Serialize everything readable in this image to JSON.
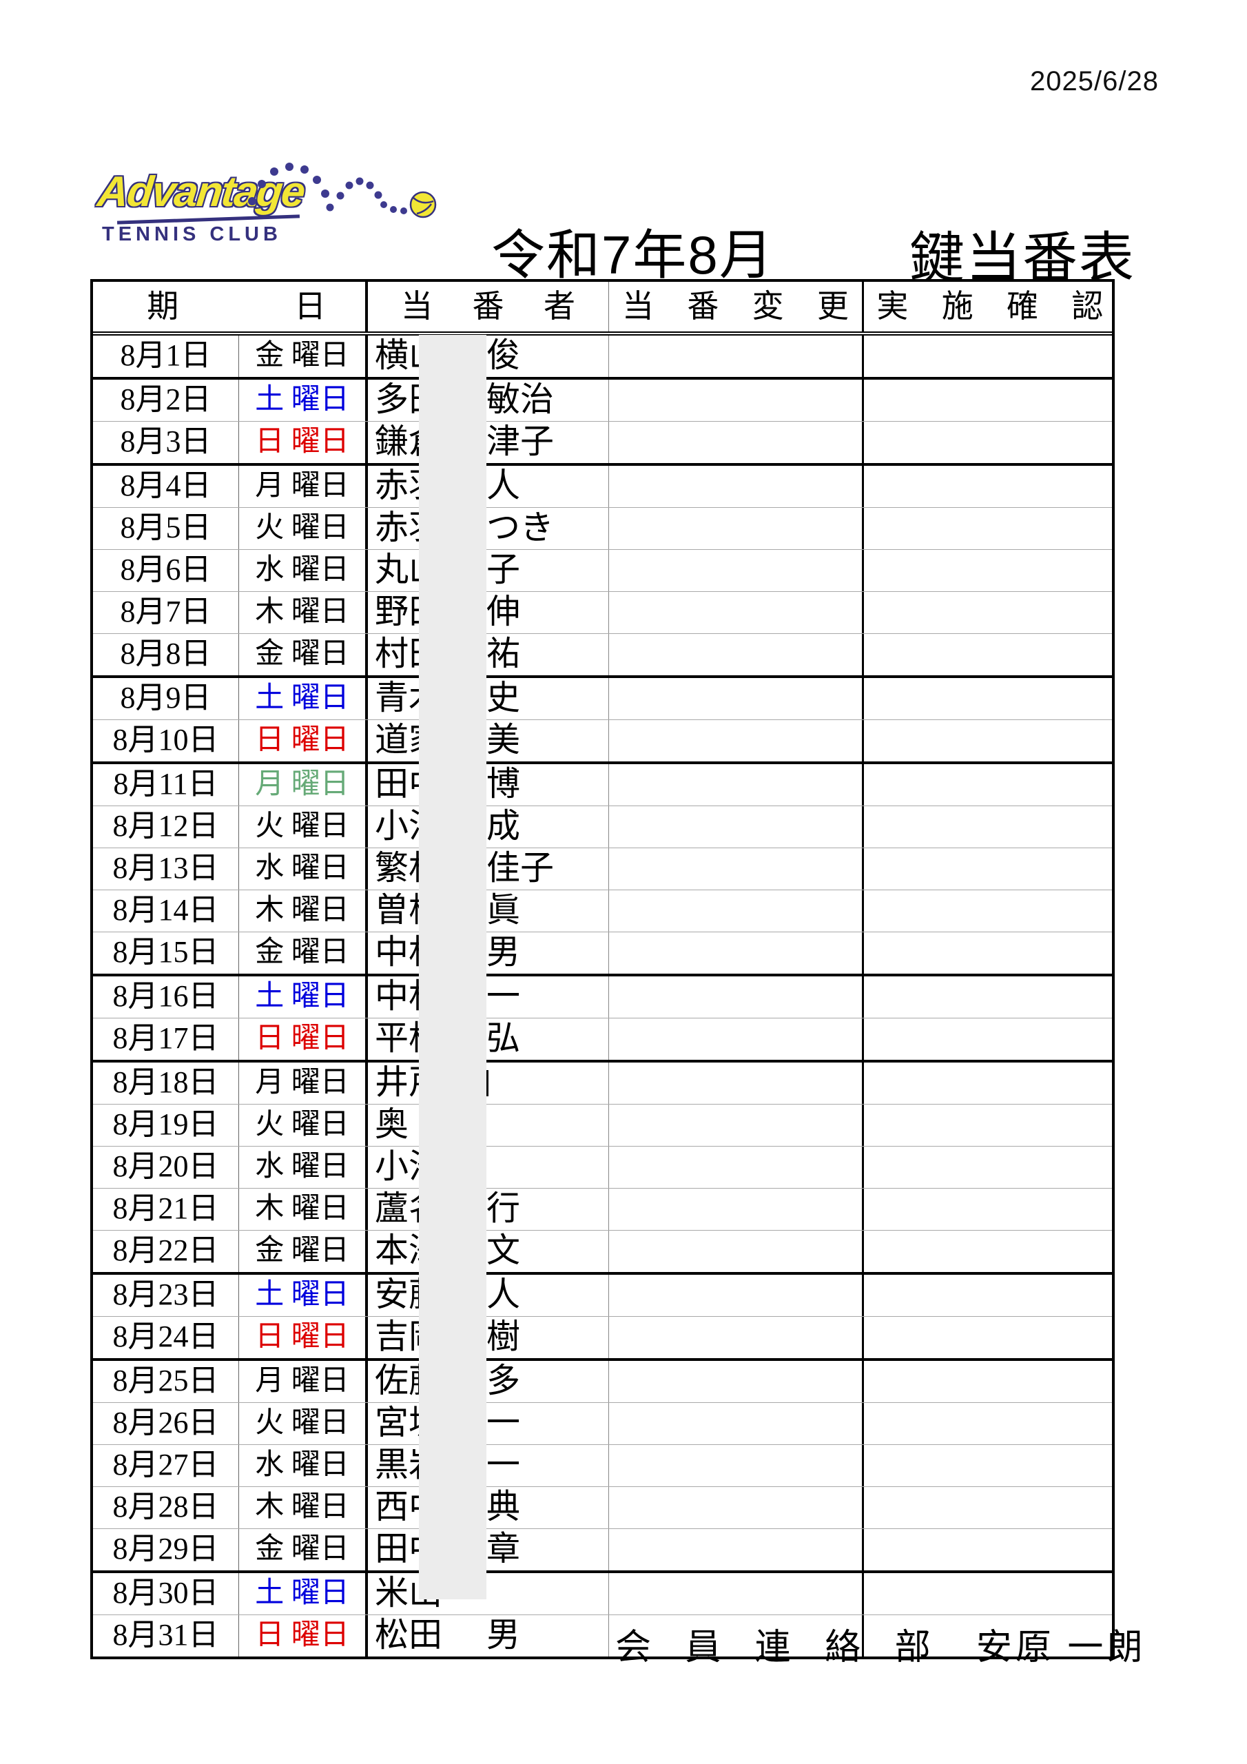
{
  "page": {
    "print_date": "2025/6/28"
  },
  "logo": {
    "brand": "Advantage",
    "subtitle": "TENNIS CLUB"
  },
  "header": {
    "era_month": "令和7年8月",
    "doc_title": "鍵当番表"
  },
  "table": {
    "columns": {
      "date_header": "期 日",
      "person_header": "当 番 者",
      "change_header": "当 番 変 更",
      "confirm_header": "実 施 確 認"
    },
    "rows": [
      {
        "date": "8月1日",
        "day": "金 曜日",
        "day_type": "weekday",
        "name_left": "横山",
        "name_right": "俊",
        "thick_top": false
      },
      {
        "date": "8月2日",
        "day": "土 曜日",
        "day_type": "saturday",
        "name_left": "多田",
        "name_right": "敏治",
        "thick_top": true
      },
      {
        "date": "8月3日",
        "day": "日 曜日",
        "day_type": "sunday",
        "name_left": "鎌倉",
        "name_right": "津子",
        "thick_top": false
      },
      {
        "date": "8月4日",
        "day": "月 曜日",
        "day_type": "weekday",
        "name_left": "赤羽",
        "name_right": "人",
        "thick_top": true
      },
      {
        "date": "8月5日",
        "day": "火 曜日",
        "day_type": "weekday",
        "name_left": "赤羽",
        "name_right": "つき",
        "thick_top": false
      },
      {
        "date": "8月6日",
        "day": "水 曜日",
        "day_type": "weekday",
        "name_left": "丸山",
        "name_right": "子",
        "thick_top": false
      },
      {
        "date": "8月7日",
        "day": "木 曜日",
        "day_type": "weekday",
        "name_left": "野田",
        "name_right": "伸",
        "thick_top": false
      },
      {
        "date": "8月8日",
        "day": "金 曜日",
        "day_type": "weekday",
        "name_left": "村田",
        "name_right": "祐",
        "thick_top": false
      },
      {
        "date": "8月9日",
        "day": "土 曜日",
        "day_type": "saturday",
        "name_left": "青木",
        "name_right": "史",
        "thick_top": true
      },
      {
        "date": "8月10日",
        "day": "日 曜日",
        "day_type": "sunday",
        "name_left": "道家",
        "name_right": "美",
        "thick_top": false
      },
      {
        "date": "8月11日",
        "day": "月 曜日",
        "day_type": "holiday",
        "name_left": "田中",
        "name_right": "博",
        "thick_top": true
      },
      {
        "date": "8月12日",
        "day": "火 曜日",
        "day_type": "weekday",
        "name_left": "小沼",
        "name_right": "成",
        "thick_top": false
      },
      {
        "date": "8月13日",
        "day": "水 曜日",
        "day_type": "weekday",
        "name_left": "繁村",
        "name_right": "佳子",
        "thick_top": false
      },
      {
        "date": "8月14日",
        "day": "木 曜日",
        "day_type": "weekday",
        "name_left": "曽根",
        "name_right": "眞",
        "thick_top": false
      },
      {
        "date": "8月15日",
        "day": "金 曜日",
        "day_type": "weekday",
        "name_left": "中村",
        "name_right": "男",
        "thick_top": false
      },
      {
        "date": "8月16日",
        "day": "土 曜日",
        "day_type": "saturday",
        "name_left": "中村",
        "name_right": "一",
        "thick_top": true
      },
      {
        "date": "8月17日",
        "day": "日 曜日",
        "day_type": "sunday",
        "name_left": "平松",
        "name_right": "弘",
        "thick_top": false
      },
      {
        "date": "8月18日",
        "day": "月 曜日",
        "day_type": "weekday",
        "name_left": "井戸",
        "name_right": "",
        "name_stub": true,
        "thick_top": true
      },
      {
        "date": "8月19日",
        "day": "火 曜日",
        "day_type": "weekday",
        "name_left": "奥",
        "name_right": "",
        "thick_top": false
      },
      {
        "date": "8月20日",
        "day": "水 曜日",
        "day_type": "weekday",
        "name_left": "小池",
        "name_right": "",
        "thick_top": false
      },
      {
        "date": "8月21日",
        "day": "木 曜日",
        "day_type": "weekday",
        "name_left": "蘆名",
        "name_right": "行",
        "thick_top": false
      },
      {
        "date": "8月22日",
        "day": "金 曜日",
        "day_type": "weekday",
        "name_left": "本澤",
        "name_right": "文",
        "thick_top": false
      },
      {
        "date": "8月23日",
        "day": "土 曜日",
        "day_type": "saturday",
        "name_left": "安藤",
        "name_right": "人",
        "thick_top": true
      },
      {
        "date": "8月24日",
        "day": "日 曜日",
        "day_type": "sunday",
        "name_left": "吉岡",
        "name_right": "樹",
        "thick_top": false
      },
      {
        "date": "8月25日",
        "day": "月 曜日",
        "day_type": "weekday",
        "name_left": "佐藤",
        "name_right": "多",
        "thick_top": true
      },
      {
        "date": "8月26日",
        "day": "火 曜日",
        "day_type": "weekday",
        "name_left": "宮坂",
        "name_right": "一",
        "thick_top": false
      },
      {
        "date": "8月27日",
        "day": "水 曜日",
        "day_type": "weekday",
        "name_left": "黒岩",
        "name_right": "一",
        "thick_top": false
      },
      {
        "date": "8月28日",
        "day": "木 曜日",
        "day_type": "weekday",
        "name_left": "西中",
        "name_right": "典",
        "thick_top": false
      },
      {
        "date": "8月29日",
        "day": "金 曜日",
        "day_type": "weekday",
        "name_left": "田中",
        "name_right": "章",
        "thick_top": false
      },
      {
        "date": "8月30日",
        "day": "土 曜日",
        "day_type": "saturday",
        "name_left": "米山",
        "name_right": "",
        "thick_top": true
      },
      {
        "date": "8月31日",
        "day": "日 曜日",
        "day_type": "sunday",
        "name_left": "松田",
        "name_right": "男",
        "thick_top": false
      }
    ]
  },
  "footer": {
    "department": "会 員 連 絡 部",
    "signer": "安原 一朗"
  },
  "colors": {
    "weekday": "#000000",
    "saturday": "#0000dd",
    "sunday": "#dd0000",
    "holiday": "#66aa77",
    "redaction": "#ececec",
    "logo_yellow": "#f2e635",
    "logo_navy": "#35317e"
  }
}
